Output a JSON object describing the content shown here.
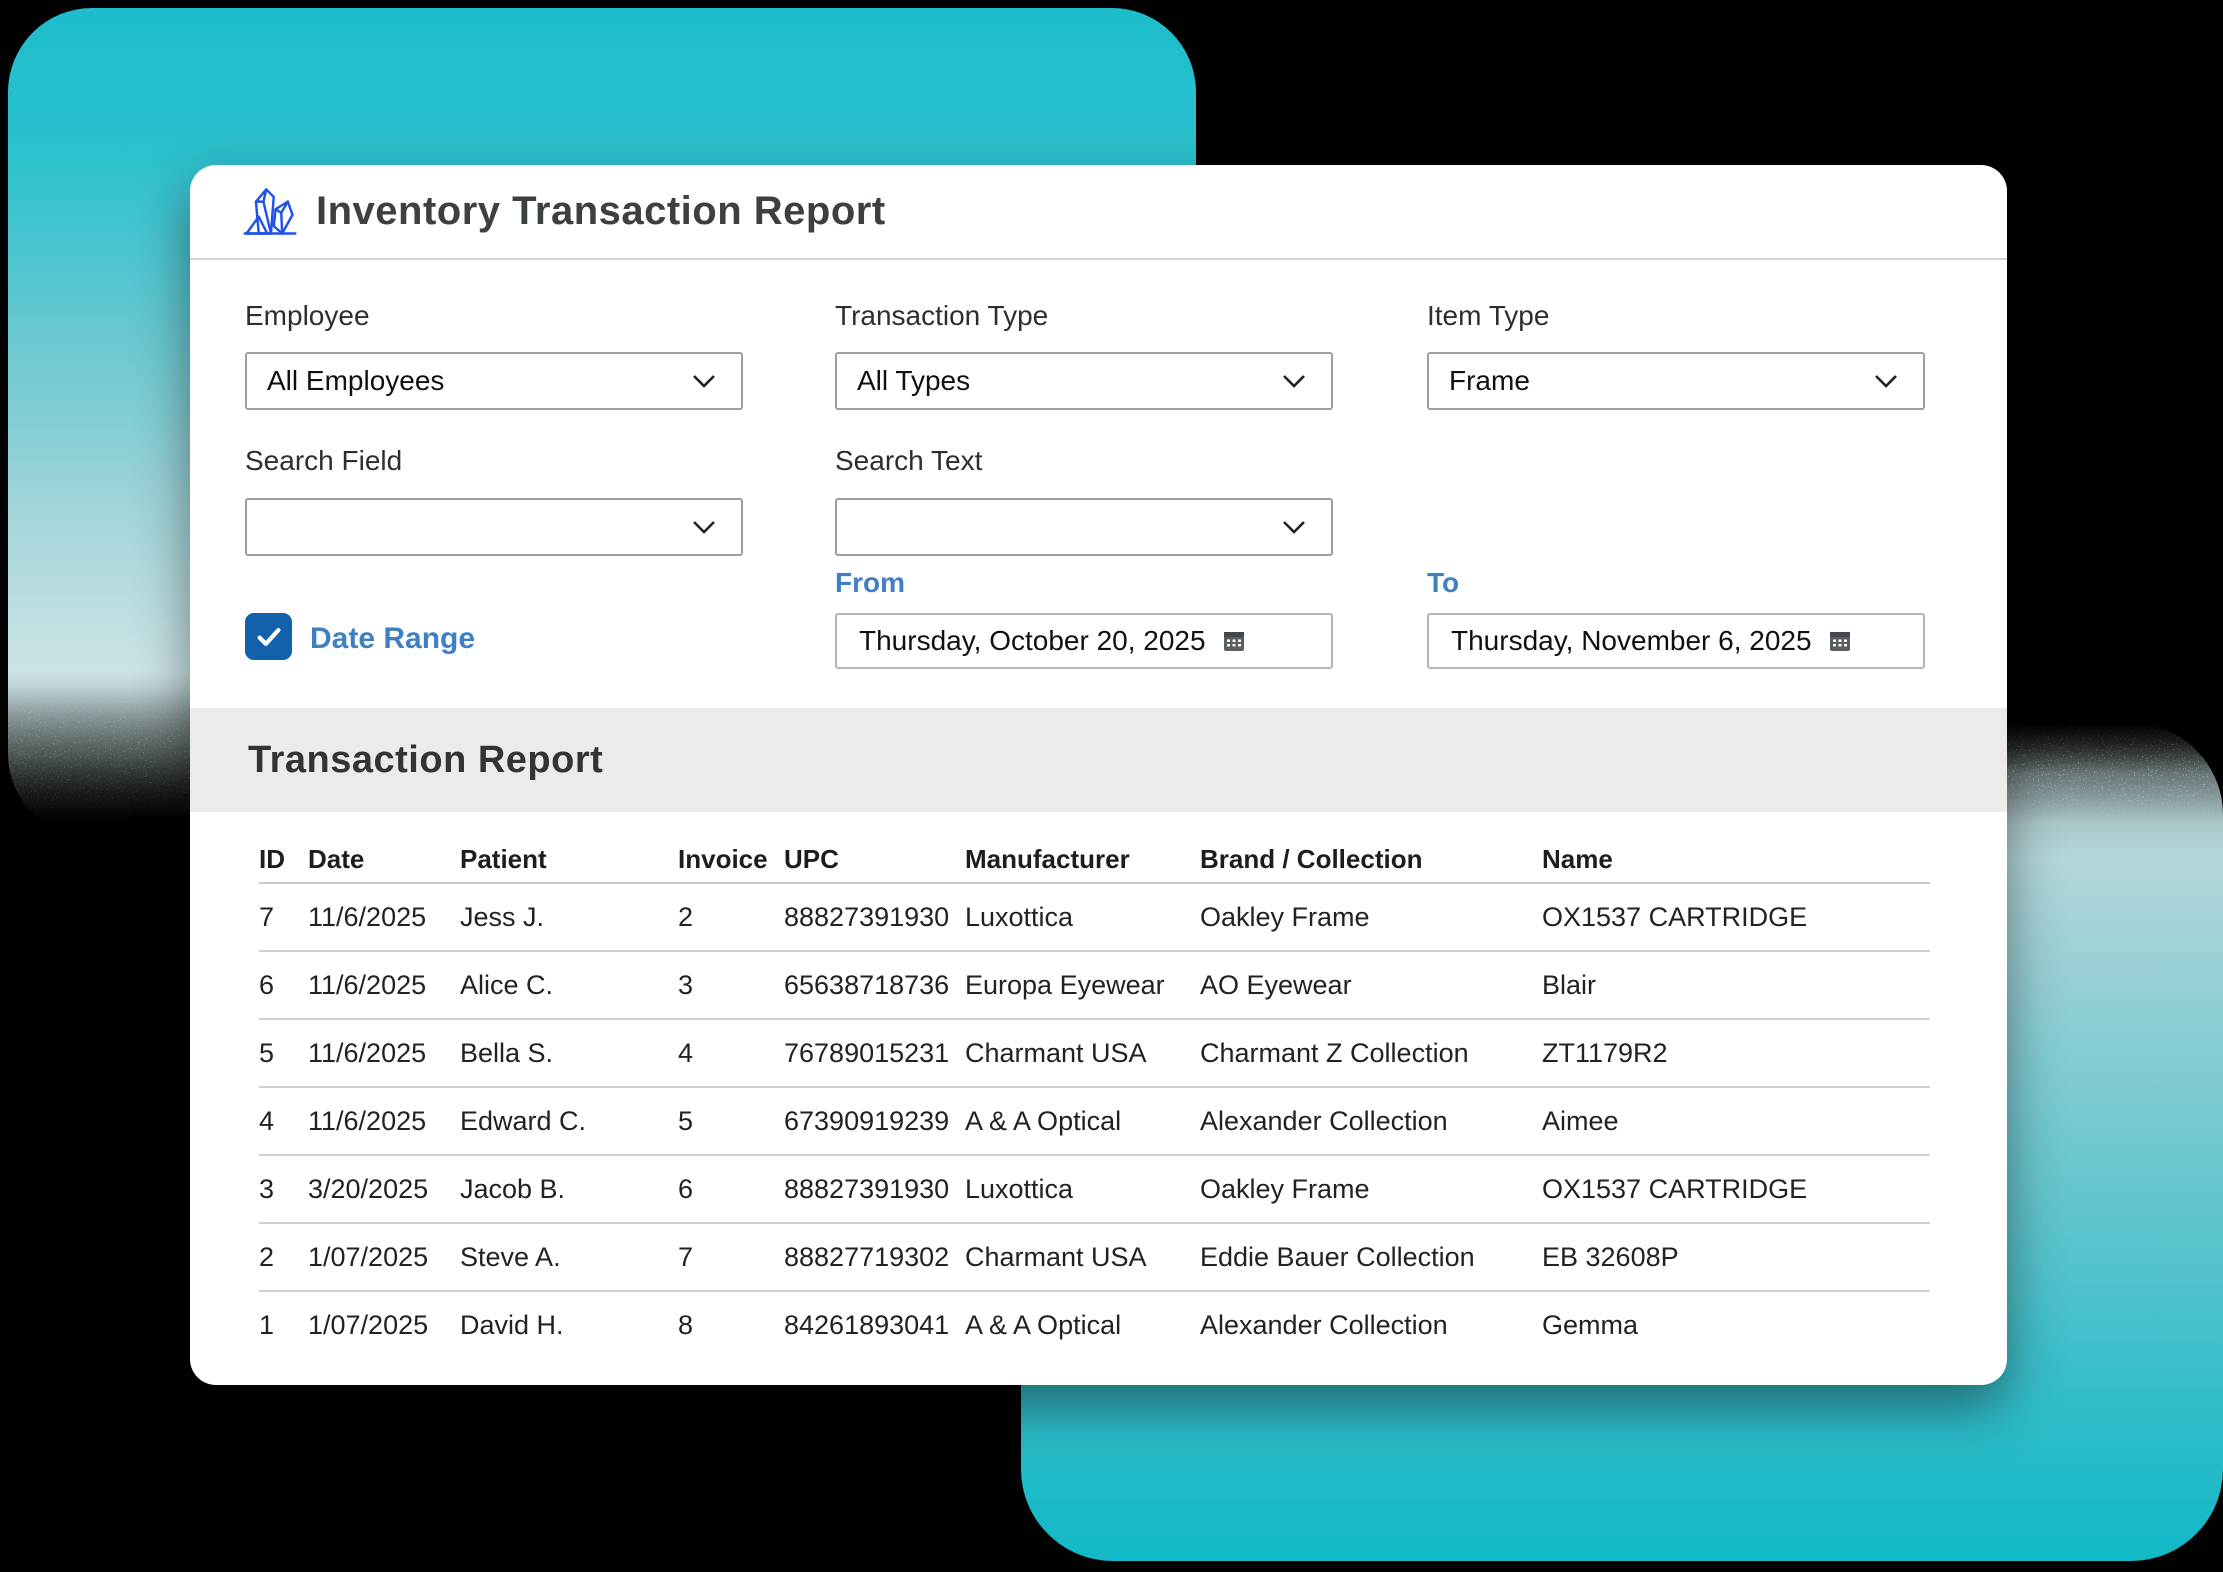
{
  "window": {
    "title": "Inventory Transaction Report",
    "icon": "crystal-icon"
  },
  "filters": {
    "employee": {
      "label": "Employee",
      "value": "All Employees"
    },
    "transaction_type": {
      "label": "Transaction Type",
      "value": "All Types"
    },
    "item_type": {
      "label": "Item Type",
      "value": "Frame"
    },
    "search_field": {
      "label": "Search Field",
      "value": ""
    },
    "search_text": {
      "label": "Search Text",
      "value": ""
    },
    "date_range": {
      "label": "Date Range",
      "checked": true
    },
    "from": {
      "label": "From",
      "value": "Thursday, October 20, 2025"
    },
    "to": {
      "label": "To",
      "value": "Thursday, November 6, 2025"
    }
  },
  "report": {
    "title": "Transaction Report",
    "columns": [
      "ID",
      "Date",
      "Patient",
      "Invoice",
      "UPC",
      "Manufacturer",
      "Brand / Collection",
      "Name"
    ],
    "rows": [
      [
        "7",
        "11/6/2025",
        "Jess J.",
        "2",
        "88827391930",
        "Luxottica",
        "Oakley Frame",
        "OX1537 CARTRIDGE"
      ],
      [
        "6",
        "11/6/2025",
        "Alice C.",
        "3",
        "65638718736",
        "Europa Eyewear",
        "AO Eyewear",
        "Blair"
      ],
      [
        "5",
        "11/6/2025",
        "Bella S.",
        "4",
        "76789015231",
        "Charmant USA",
        "Charmant Z Collection",
        "ZT1179R2"
      ],
      [
        "4",
        "11/6/2025",
        "Edward C.",
        "5",
        "67390919239",
        "A & A Optical",
        "Alexander Collection",
        "Aimee"
      ],
      [
        "3",
        "3/20/2025",
        "Jacob B.",
        "6",
        "88827391930",
        "Luxottica",
        "Oakley Frame",
        "OX1537 CARTRIDGE"
      ],
      [
        "2",
        "1/07/2025",
        "Steve A.",
        "7",
        "88827719302",
        "Charmant USA",
        "Eddie Bauer Collection",
        "EB 32608P"
      ],
      [
        "1",
        "1/07/2025",
        "David H.",
        "8",
        "84261893041",
        "A & A Optical",
        "Alexander Collection",
        "Gemma"
      ]
    ]
  },
  "colors": {
    "teal_bright": "#1ebecd",
    "teal_deep": "#10b9c7",
    "canvas_black": "#010101",
    "accent_blue": "#3e80c2",
    "checkbox_blue": "#1162ab",
    "icon_blue": "#2052e5",
    "band_gray": "#ebebeb"
  }
}
